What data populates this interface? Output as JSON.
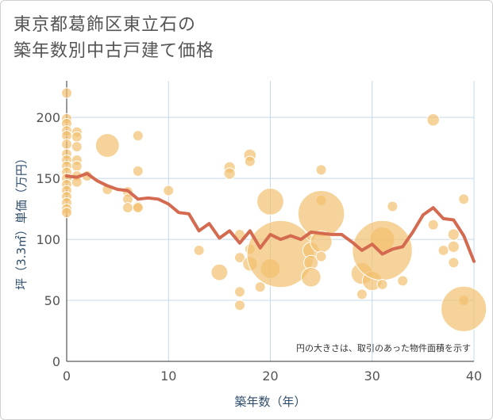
{
  "title_lines": [
    "東京都葛飾区東立石の",
    "築年数別中古戸建て価格"
  ],
  "chart_data": {
    "type": "scatter",
    "xlabel": "築年数（年）",
    "ylabel": "坪（3.3㎡）単価（万円）",
    "xlim": [
      0,
      40
    ],
    "ylim": [
      0,
      230
    ],
    "xticks": [
      0,
      10,
      20,
      30,
      40
    ],
    "yticks": [
      0,
      50,
      100,
      150,
      200
    ],
    "grid": true,
    "note": "円の大きさは、取引のあった物件面積を示す",
    "colors": {
      "bubble": "#f2c06f",
      "line": "#d46a50",
      "grid": "#c8d8e8",
      "axis_text": "#555555"
    },
    "bubbles": [
      {
        "x": 0,
        "y": 220,
        "s": 1
      },
      {
        "x": 0,
        "y": 199,
        "s": 1
      },
      {
        "x": 0,
        "y": 195,
        "s": 1
      },
      {
        "x": 0,
        "y": 189,
        "s": 1
      },
      {
        "x": 0,
        "y": 185,
        "s": 1
      },
      {
        "x": 0,
        "y": 178,
        "s": 1
      },
      {
        "x": 0,
        "y": 170,
        "s": 1
      },
      {
        "x": 0,
        "y": 165,
        "s": 1
      },
      {
        "x": 0,
        "y": 160,
        "s": 1
      },
      {
        "x": 0,
        "y": 155,
        "s": 1
      },
      {
        "x": 0,
        "y": 150,
        "s": 1
      },
      {
        "x": 0,
        "y": 145,
        "s": 1
      },
      {
        "x": 0,
        "y": 140,
        "s": 1
      },
      {
        "x": 0,
        "y": 135,
        "s": 1
      },
      {
        "x": 0,
        "y": 130,
        "s": 1
      },
      {
        "x": 0,
        "y": 125,
        "s": 1
      },
      {
        "x": 0,
        "y": 122,
        "s": 1
      },
      {
        "x": 1,
        "y": 188,
        "s": 1
      },
      {
        "x": 1,
        "y": 184,
        "s": 1
      },
      {
        "x": 1,
        "y": 176,
        "s": 1
      },
      {
        "x": 1,
        "y": 165,
        "s": 1
      },
      {
        "x": 1,
        "y": 160,
        "s": 1
      },
      {
        "x": 1,
        "y": 152,
        "s": 1
      },
      {
        "x": 1,
        "y": 147,
        "s": 1
      },
      {
        "x": 2,
        "y": 152,
        "s": 1
      },
      {
        "x": 4,
        "y": 177,
        "s": 2.3
      },
      {
        "x": 4,
        "y": 141,
        "s": 1
      },
      {
        "x": 6,
        "y": 139,
        "s": 1
      },
      {
        "x": 6,
        "y": 133,
        "s": 1
      },
      {
        "x": 6,
        "y": 126,
        "s": 1
      },
      {
        "x": 7,
        "y": 185,
        "s": 1
      },
      {
        "x": 7,
        "y": 156,
        "s": 1
      },
      {
        "x": 7,
        "y": 127,
        "s": 1
      },
      {
        "x": 7,
        "y": 126,
        "s": 1
      },
      {
        "x": 10,
        "y": 140,
        "s": 1
      },
      {
        "x": 13,
        "y": 91,
        "s": 1
      },
      {
        "x": 15,
        "y": 73,
        "s": 1.6
      },
      {
        "x": 16,
        "y": 159,
        "s": 1.1
      },
      {
        "x": 16,
        "y": 154,
        "s": 1.1
      },
      {
        "x": 17,
        "y": 104,
        "s": 1
      },
      {
        "x": 17,
        "y": 85,
        "s": 1
      },
      {
        "x": 17,
        "y": 57,
        "s": 1
      },
      {
        "x": 17,
        "y": 46,
        "s": 1
      },
      {
        "x": 18,
        "y": 169,
        "s": 1.2
      },
      {
        "x": 18,
        "y": 164,
        "s": 1
      },
      {
        "x": 18,
        "y": 92,
        "s": 1
      },
      {
        "x": 18,
        "y": 80,
        "s": 1.4
      },
      {
        "x": 19,
        "y": 61,
        "s": 1
      },
      {
        "x": 20,
        "y": 131,
        "s": 2.6
      },
      {
        "x": 20,
        "y": 76,
        "s": 1.9
      },
      {
        "x": 21,
        "y": 88,
        "s": 6.5
      },
      {
        "x": 24,
        "y": 103,
        "s": 1
      },
      {
        "x": 24,
        "y": 91,
        "s": 1.6
      },
      {
        "x": 24,
        "y": 81,
        "s": 1.4
      },
      {
        "x": 24,
        "y": 69,
        "s": 1.9
      },
      {
        "x": 25,
        "y": 157,
        "s": 1
      },
      {
        "x": 25,
        "y": 132,
        "s": 1
      },
      {
        "x": 25,
        "y": 121,
        "s": 4.5
      },
      {
        "x": 25,
        "y": 98,
        "s": 2.1
      },
      {
        "x": 25,
        "y": 86,
        "s": 1
      },
      {
        "x": 29,
        "y": 72,
        "s": 2.1
      },
      {
        "x": 29,
        "y": 55,
        "s": 1
      },
      {
        "x": 30,
        "y": 66,
        "s": 1.9
      },
      {
        "x": 31,
        "y": 100,
        "s": 2.4
      },
      {
        "x": 31,
        "y": 91,
        "s": 5.8
      },
      {
        "x": 31,
        "y": 63,
        "s": 1
      },
      {
        "x": 32,
        "y": 127,
        "s": 1
      },
      {
        "x": 33,
        "y": 66,
        "s": 1
      },
      {
        "x": 36,
        "y": 198,
        "s": 1.2
      },
      {
        "x": 36,
        "y": 112,
        "s": 1
      },
      {
        "x": 37,
        "y": 91,
        "s": 1
      },
      {
        "x": 38,
        "y": 104,
        "s": 1.1
      },
      {
        "x": 38,
        "y": 94,
        "s": 1.1
      },
      {
        "x": 38,
        "y": 81,
        "s": 1
      },
      {
        "x": 39,
        "y": 133,
        "s": 1
      },
      {
        "x": 39,
        "y": 50,
        "s": 1
      },
      {
        "x": 39,
        "y": 43,
        "s": 4.4
      }
    ],
    "line": {
      "x": [
        0,
        1,
        2,
        3,
        4,
        5,
        6,
        7,
        8,
        9,
        10,
        11,
        12,
        13,
        14,
        15,
        16,
        17,
        18,
        19,
        20,
        21,
        22,
        23,
        24,
        25,
        26,
        27,
        28,
        29,
        30,
        31,
        32,
        33,
        34,
        35,
        36,
        37,
        38,
        39,
        40
      ],
      "y": [
        152,
        151,
        154,
        148,
        144,
        141,
        140,
        133,
        134,
        133,
        129,
        122,
        121,
        107,
        113,
        101,
        107,
        97,
        107,
        93,
        104,
        100,
        103,
        100,
        106,
        105,
        104,
        104,
        98,
        91,
        96,
        88,
        92,
        94,
        106,
        120,
        126,
        117,
        116,
        103,
        82
      ]
    }
  }
}
